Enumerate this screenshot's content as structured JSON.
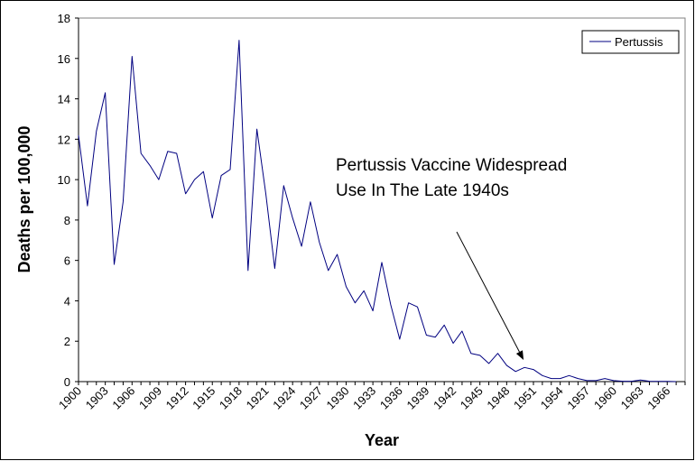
{
  "chart_data": {
    "type": "line",
    "title": "",
    "xlabel": "Year",
    "ylabel": "Deaths per 100,000",
    "ylim": [
      0,
      18
    ],
    "yticks": [
      0,
      2,
      4,
      6,
      8,
      10,
      12,
      14,
      16,
      18
    ],
    "xlim": [
      1900,
      1968
    ],
    "xtick_labels": [
      "1900",
      "1903",
      "1906",
      "1909",
      "1912",
      "1915",
      "1918",
      "1921",
      "1924",
      "1927",
      "1930",
      "1933",
      "1936",
      "1939",
      "1942",
      "1945",
      "1948",
      "1951",
      "1954",
      "1957",
      "1960",
      "1963",
      "1966"
    ],
    "grid": false,
    "legend": {
      "position": "top-right",
      "entries": [
        "Pertussis"
      ]
    },
    "annotation": {
      "lines": [
        "Pertussis  Vaccine Widespread",
        "Use In The Late 1940s"
      ],
      "arrow_points_to_year": 1950
    },
    "series": [
      {
        "name": "Pertussis",
        "color": "#000080",
        "x": [
          1900,
          1901,
          1902,
          1903,
          1904,
          1905,
          1906,
          1907,
          1908,
          1909,
          1910,
          1911,
          1912,
          1913,
          1914,
          1915,
          1916,
          1917,
          1918,
          1919,
          1920,
          1921,
          1922,
          1923,
          1924,
          1925,
          1926,
          1927,
          1928,
          1929,
          1930,
          1931,
          1932,
          1933,
          1934,
          1935,
          1936,
          1937,
          1938,
          1939,
          1940,
          1941,
          1942,
          1943,
          1944,
          1945,
          1946,
          1947,
          1948,
          1949,
          1950,
          1951,
          1952,
          1953,
          1954,
          1955,
          1956,
          1957,
          1958,
          1959,
          1960,
          1961,
          1962,
          1963,
          1964,
          1965,
          1966,
          1967
        ],
        "values": [
          12.2,
          8.7,
          12.4,
          14.3,
          5.8,
          8.9,
          16.1,
          11.3,
          10.7,
          10.0,
          11.4,
          11.3,
          9.3,
          10.0,
          10.4,
          8.1,
          10.2,
          10.5,
          16.9,
          5.5,
          12.5,
          9.3,
          5.6,
          9.7,
          8.1,
          6.7,
          8.9,
          6.9,
          5.5,
          6.3,
          4.7,
          3.9,
          4.5,
          3.5,
          5.9,
          3.8,
          2.1,
          3.9,
          3.7,
          2.3,
          2.2,
          2.8,
          1.9,
          2.5,
          1.4,
          1.3,
          0.9,
          1.4,
          0.8,
          0.5,
          0.7,
          0.6,
          0.3,
          0.15,
          0.15,
          0.3,
          0.15,
          0.05,
          0.05,
          0.15,
          0.05,
          0.02,
          0.02,
          0.08,
          0.02,
          0.01,
          0.01,
          0.0
        ]
      }
    ]
  }
}
